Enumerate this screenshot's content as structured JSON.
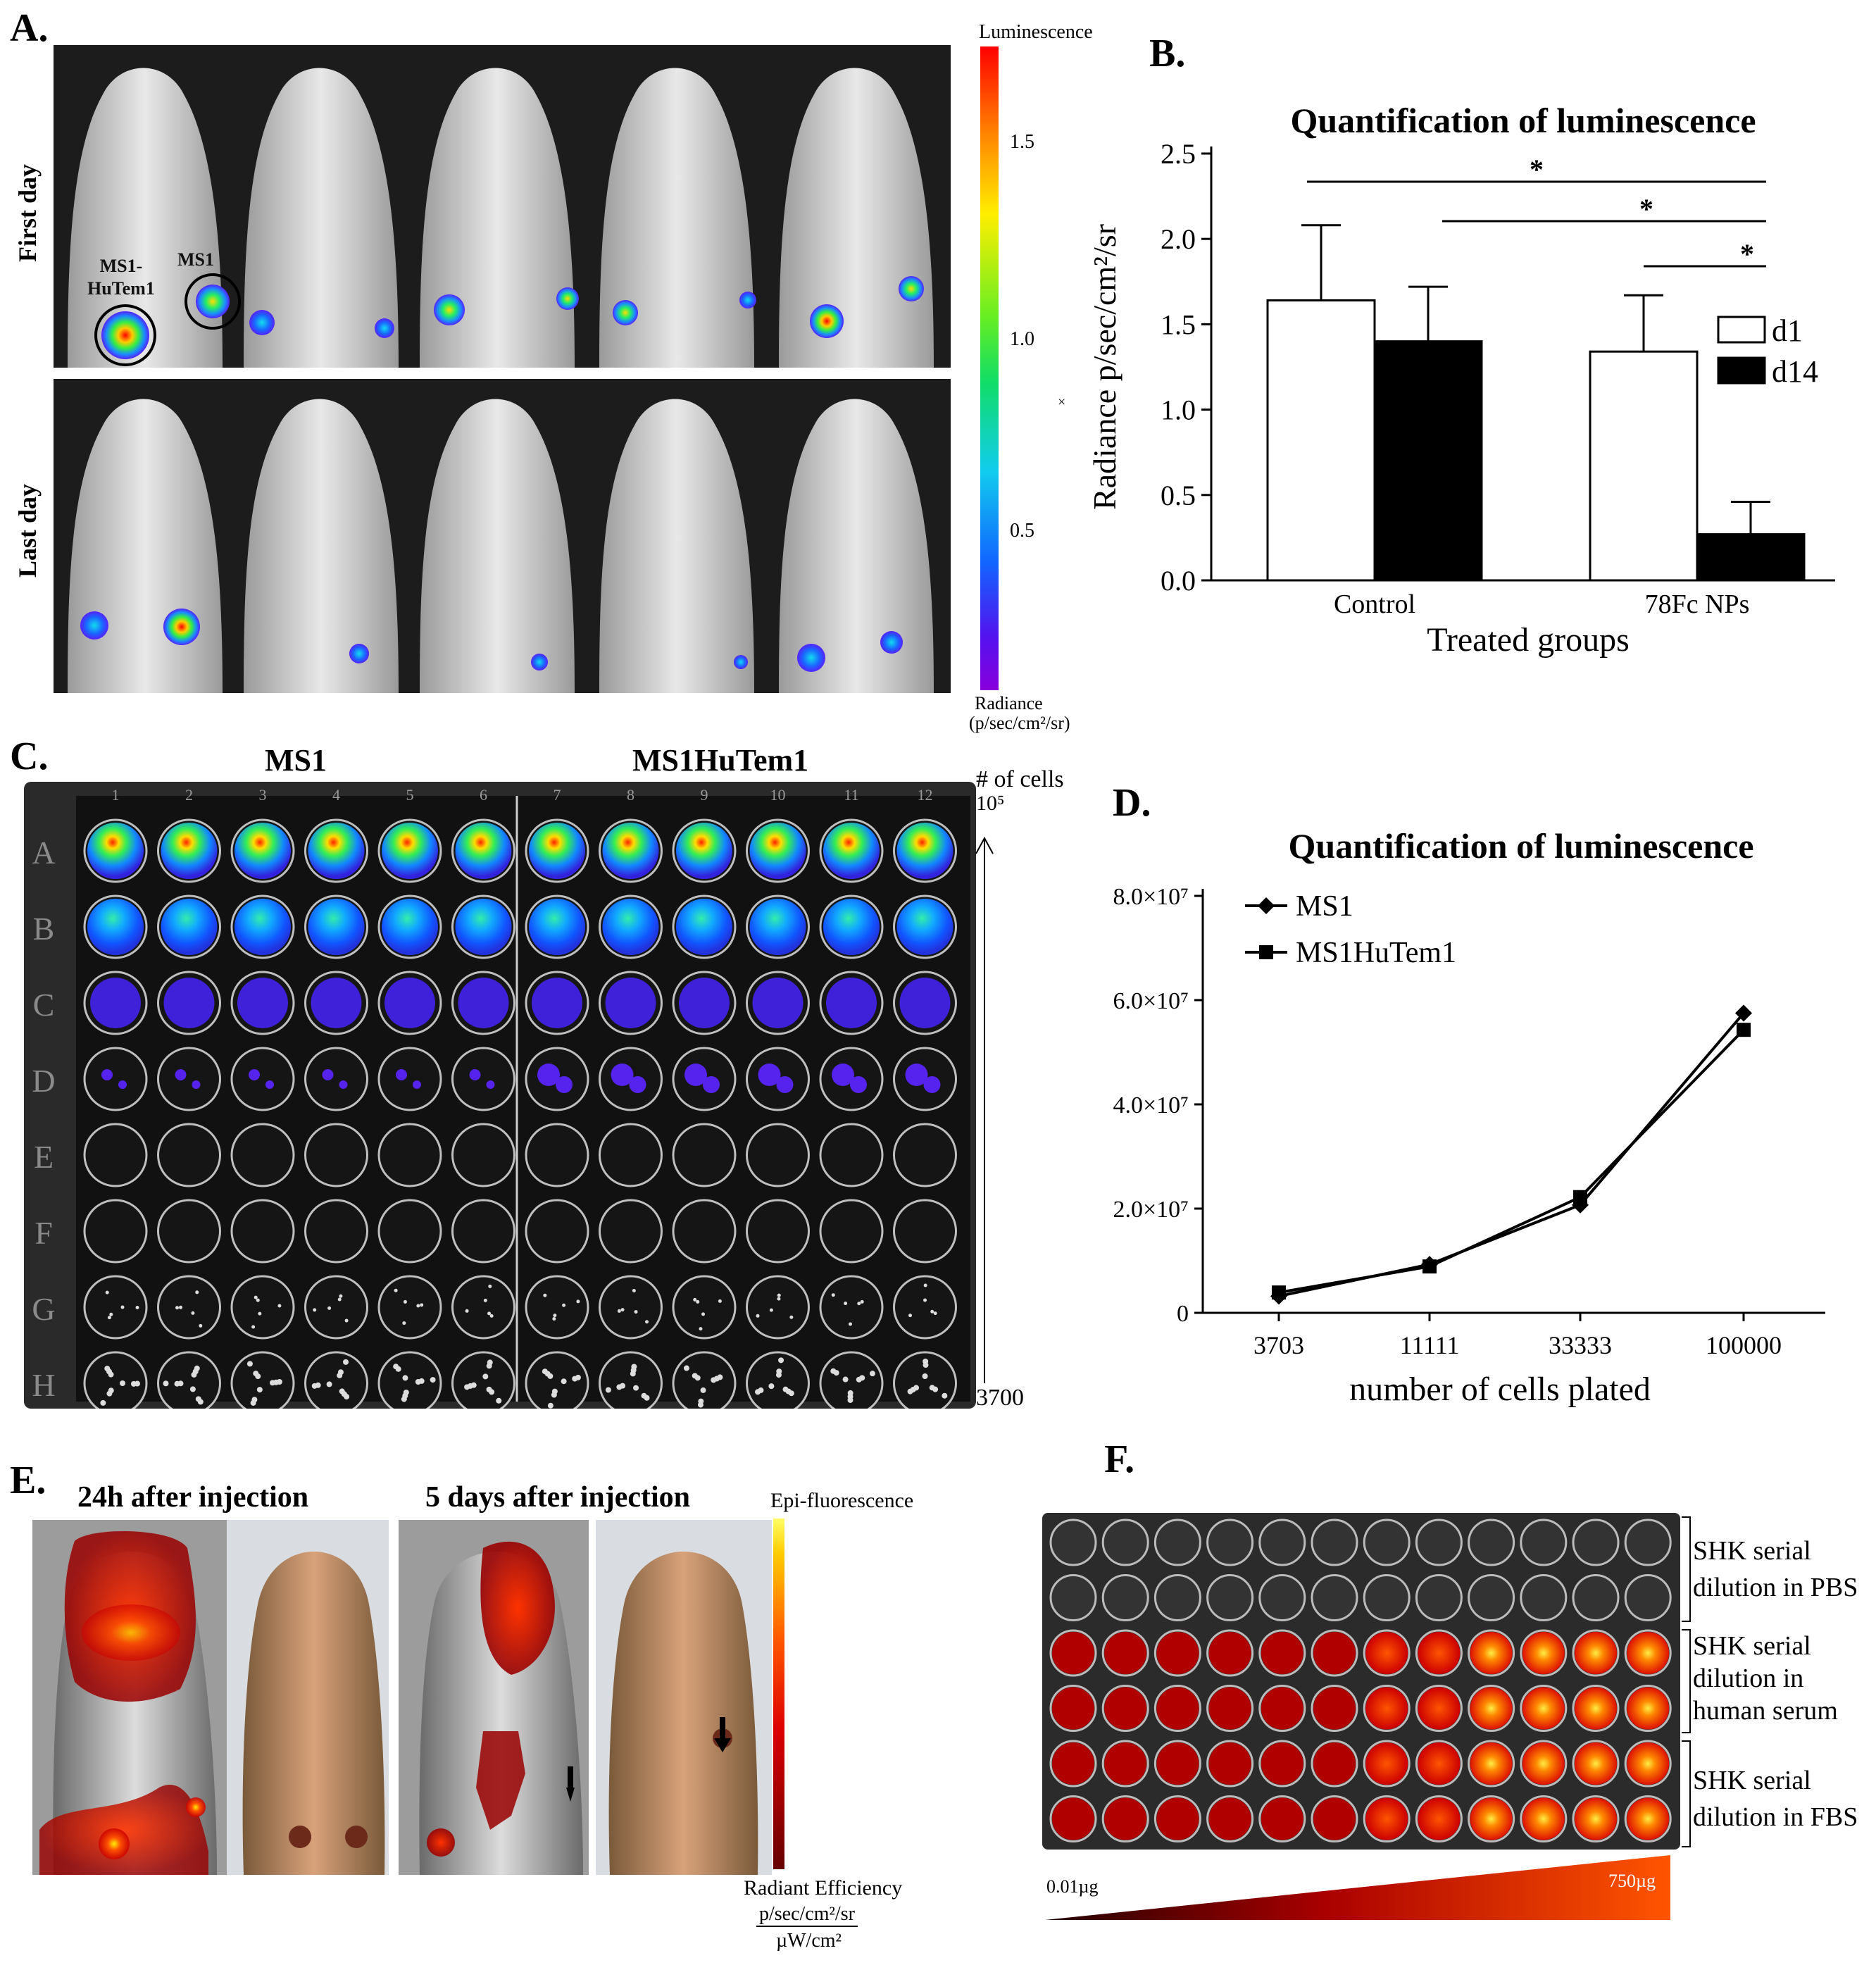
{
  "panels": {
    "a": {
      "label": "A.",
      "row_labels": [
        "First day",
        "Last day"
      ],
      "annotations": {
        "ms1_hutem1": "MS1-\nHuTem1",
        "ms1": "MS1"
      },
      "colorbar": {
        "title": "Luminescence",
        "ticks": [
          "1.5",
          "1.0",
          "0.5"
        ],
        "unit_label": "Radiance",
        "unit": "(p/sec/cm²/sr)",
        "marker": "×"
      }
    },
    "b": {
      "label": "B.",
      "chart_data": {
        "type": "bar",
        "title": "Quantification of luminescence",
        "xlabel": "Treated groups",
        "ylabel": "Radiance p/sec/cm²/sr",
        "ylim": [
          0,
          2.5
        ],
        "yticks": [
          "0.0",
          "0.5",
          "1.0",
          "1.5",
          "2.0",
          "2.5"
        ],
        "categories": [
          "Control",
          "78Fc NPs"
        ],
        "series": [
          {
            "name": "d1",
            "color": "#ffffff",
            "values": [
              1.64,
              1.34
            ],
            "errors": [
              0.44,
              0.33
            ]
          },
          {
            "name": "d14",
            "color": "#000000",
            "values": [
              1.4,
              0.27
            ],
            "errors": [
              0.32,
              0.19
            ]
          }
        ],
        "significance": [
          "*",
          "*",
          "*"
        ]
      }
    },
    "c": {
      "label": "C.",
      "group_labels": [
        "MS1",
        "MS1HuTem1"
      ],
      "col_numbers": [
        "1",
        "2",
        "3",
        "4",
        "5",
        "6",
        "7",
        "8",
        "9",
        "10",
        "11",
        "12"
      ],
      "row_letters": [
        "A",
        "B",
        "C",
        "D",
        "E",
        "F",
        "G",
        "H"
      ],
      "axis_top": "# of cells",
      "axis_top_value": "10⁵",
      "axis_bottom_value": "3700"
    },
    "d": {
      "label": "D.",
      "chart_data": {
        "type": "line",
        "title": "Quantification of luminescence",
        "xlabel": "number of cells plated",
        "ylabel": "",
        "categories": [
          "3703",
          "11111",
          "33333",
          "100000"
        ],
        "yticks": [
          "0",
          "2.0×10⁷",
          "4.0×10⁷",
          "6.0×10⁷",
          "8.0×10⁷"
        ],
        "ylim": [
          0,
          80000000
        ],
        "series": [
          {
            "name": "MS1",
            "marker": "diamond",
            "values": [
              3200000,
              9300000,
              20700000,
              57500000
            ]
          },
          {
            "name": "MS1HuTem1",
            "marker": "square",
            "values": [
              3900000,
              8900000,
              22200000,
              54300000
            ]
          }
        ]
      }
    },
    "e": {
      "label": "E.",
      "subtitles": [
        "24h after injection",
        "5 days after injection"
      ],
      "colorbar": {
        "title": "Epi-fluorescence",
        "unit_label": "Radiant Efficiency",
        "unit_num": "p/sec/cm²/sr",
        "unit_den": "µW/cm²"
      }
    },
    "f": {
      "label": "F.",
      "brackets": [
        "SHK serial dilution in PBS",
        "SHK serial dilution in human serum",
        "SHK serial dilution in FBS"
      ],
      "gradient": {
        "low": "0.01µg",
        "high": "750µg"
      }
    }
  }
}
